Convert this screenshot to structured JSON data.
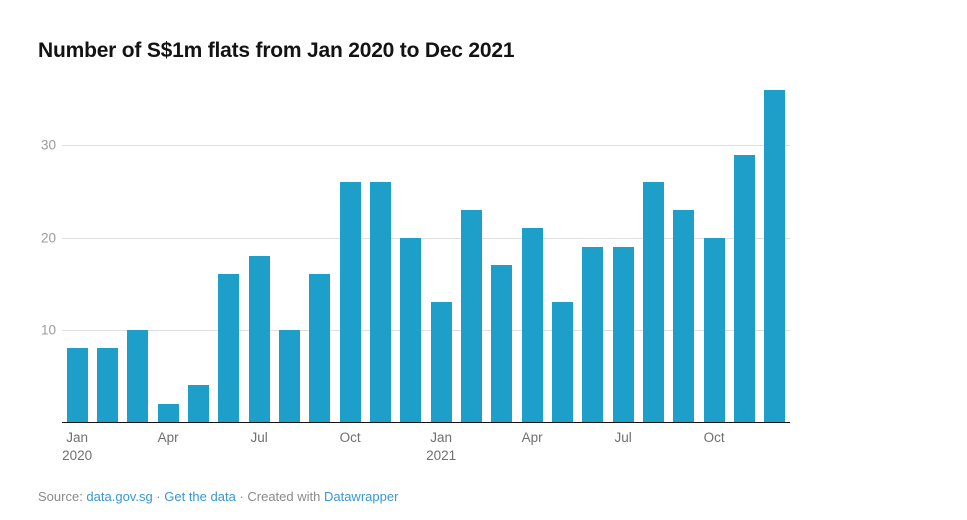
{
  "chart_data": {
    "type": "bar",
    "title": "Number of S$1m flats from Jan 2020 to Dec 2021",
    "categories": [
      "Jan 2020",
      "Feb 2020",
      "Mar 2020",
      "Apr 2020",
      "May 2020",
      "Jun 2020",
      "Jul 2020",
      "Aug 2020",
      "Sep 2020",
      "Oct 2020",
      "Nov 2020",
      "Dec 2020",
      "Jan 2021",
      "Feb 2021",
      "Mar 2021",
      "Apr 2021",
      "May 2021",
      "Jun 2021",
      "Jul 2021",
      "Aug 2021",
      "Sep 2021",
      "Oct 2021",
      "Nov 2021",
      "Dec 2021"
    ],
    "values": [
      8,
      8,
      10,
      2,
      4,
      16,
      18,
      10,
      16,
      26,
      26,
      20,
      13,
      23,
      17,
      21,
      13,
      19,
      19,
      26,
      23,
      20,
      29,
      36
    ],
    "xlabel": "",
    "ylabel": "",
    "ylim": [
      0,
      36.5
    ],
    "y_ticks": [
      10,
      20,
      30
    ],
    "x_ticks": [
      {
        "index": 0,
        "label": "Jan\n2020"
      },
      {
        "index": 3,
        "label": "Apr"
      },
      {
        "index": 6,
        "label": "Jul"
      },
      {
        "index": 9,
        "label": "Oct"
      },
      {
        "index": 12,
        "label": "Jan\n2021"
      },
      {
        "index": 15,
        "label": "Apr"
      },
      {
        "index": 18,
        "label": "Jul"
      },
      {
        "index": 21,
        "label": "Oct"
      }
    ],
    "grid": true,
    "legend": "none",
    "colors": {
      "bar": "#1e9fc9",
      "gridline": "#e0e0e0",
      "axis_line": "#141414",
      "y_tick_text": "#9b9b9b",
      "x_tick_text": "#6f6f6f",
      "title_text": "#131313",
      "footer_text": "#8a8a8a",
      "link": "#3897d1"
    }
  },
  "footer": {
    "segments": [
      {
        "text": "Source: "
      },
      {
        "text": "data.gov.sg"
      },
      {
        "text": " · "
      },
      {
        "text": "Get the data"
      },
      {
        "text": " · "
      },
      {
        "text": "Created with "
      },
      {
        "text": "Datawrapper"
      }
    ]
  }
}
